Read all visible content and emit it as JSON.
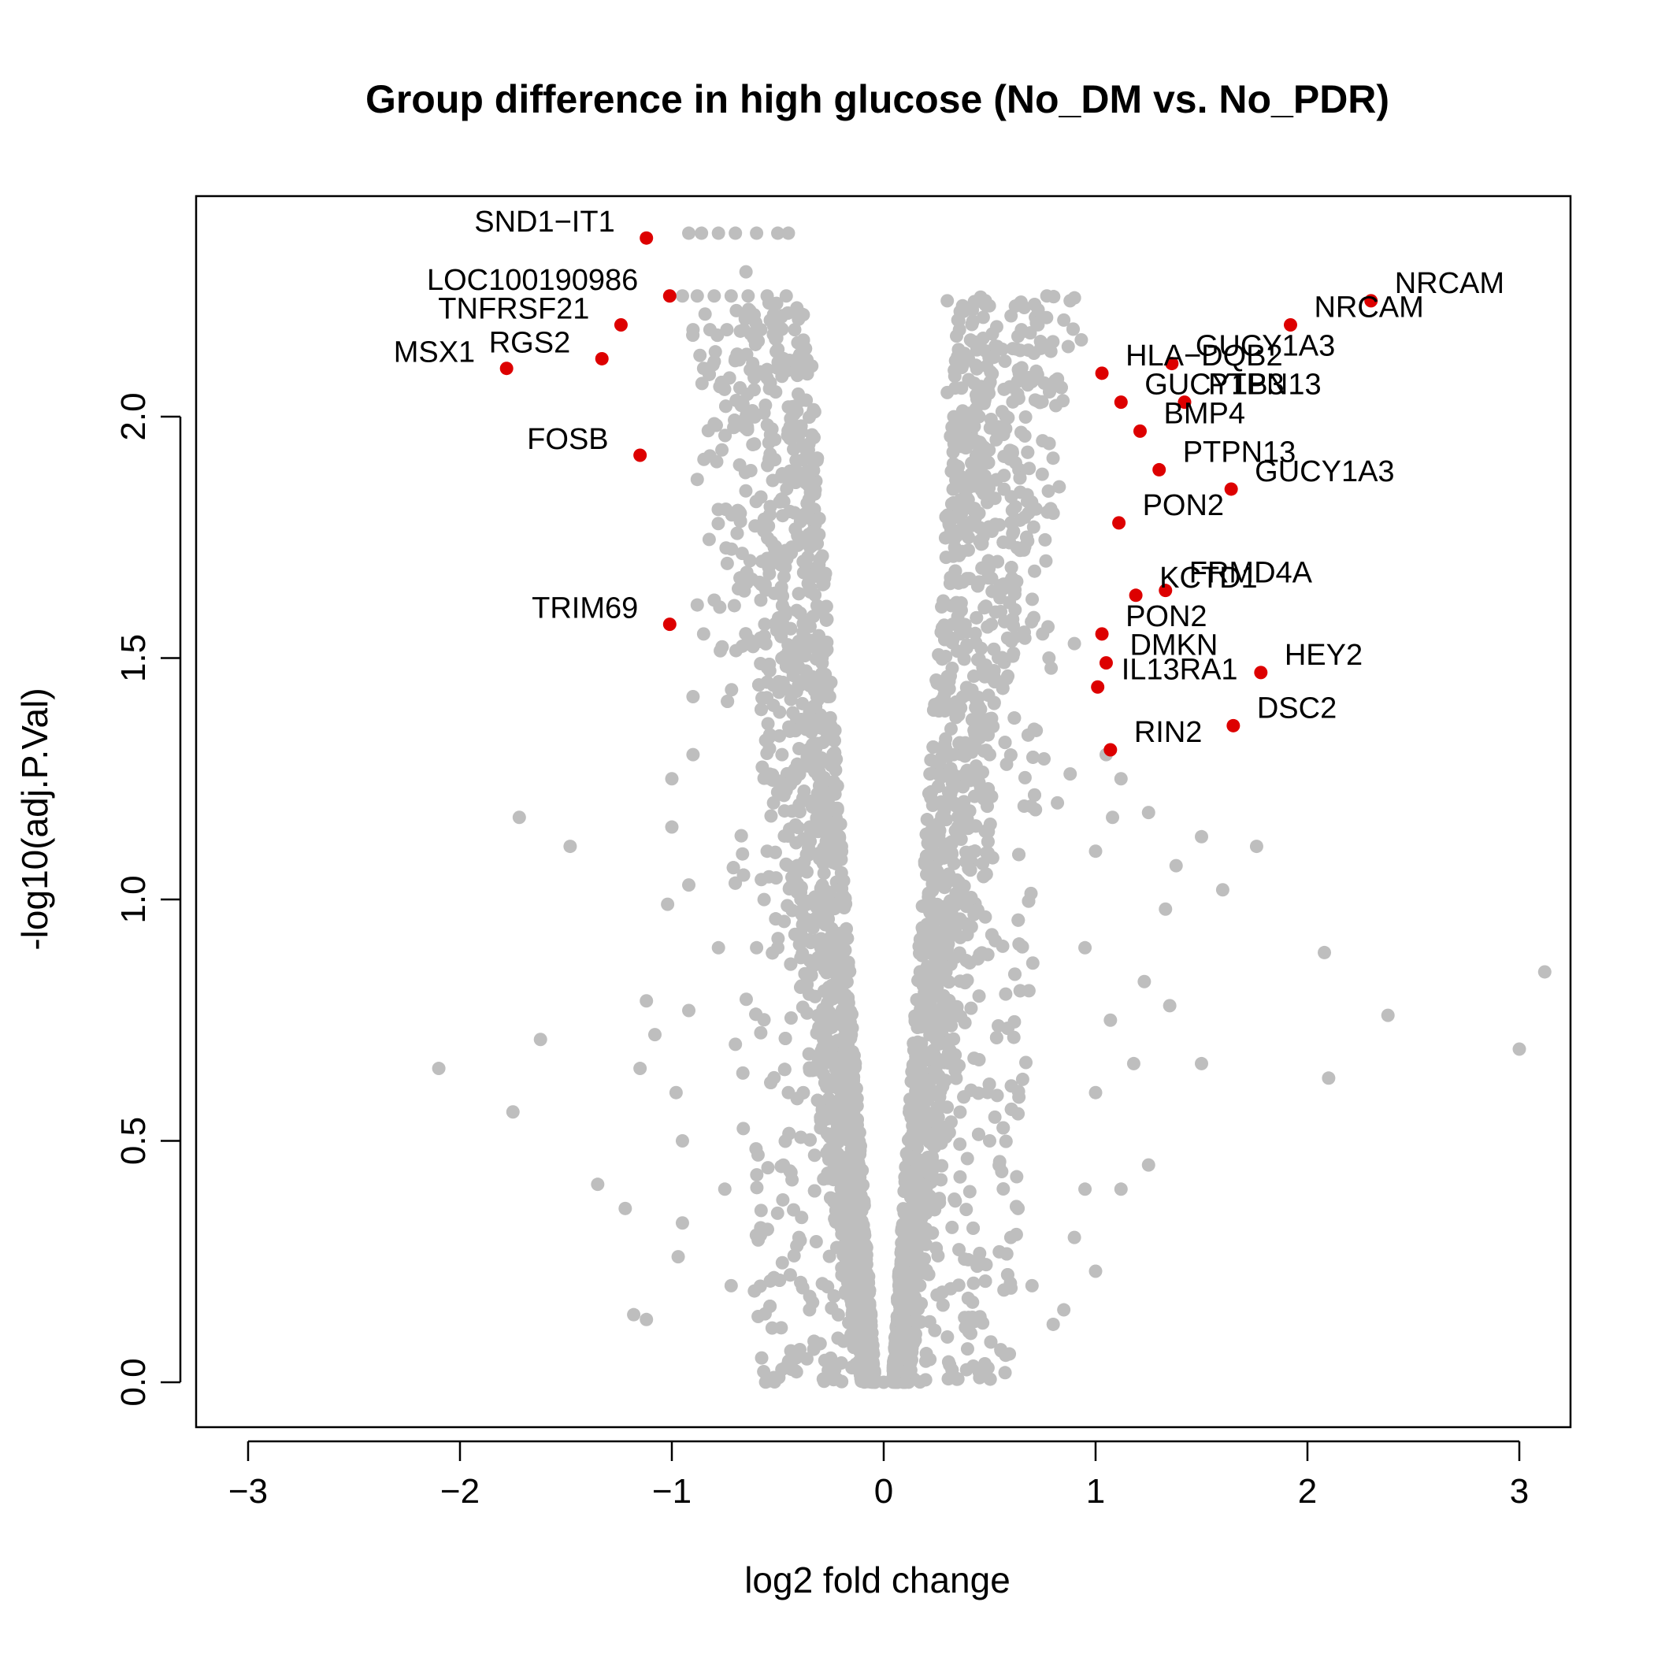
{
  "chart_data": {
    "type": "scatter",
    "title": "Group difference in high glucose (No_DM vs. No_PDR)",
    "xlabel": "log2 fold change",
    "ylabel": "-log10(adj.P.Val)",
    "xlim": [
      -3,
      3
    ],
    "ylim": [
      0,
      2.5
    ],
    "x_ticks": [
      "−3",
      "−2",
      "−1",
      "0",
      "1",
      "2",
      "3"
    ],
    "y_ticks": [
      "0.0",
      "0.5",
      "1.0",
      "1.5",
      "2.0"
    ],
    "colors": {
      "background_points": "#bebebe",
      "highlight_points": "#dd0000"
    },
    "series": [
      {
        "name": "",
        "color": "#bebebe",
        "points": [
          [
            -2.1,
            0.65
          ],
          [
            -1.75,
            0.56
          ],
          [
            -1.72,
            1.17
          ],
          [
            -1.62,
            0.71
          ],
          [
            -1.48,
            1.11
          ],
          [
            -1.35,
            0.41
          ],
          [
            -1.22,
            0.36
          ],
          [
            -1.18,
            0.14
          ],
          [
            -1.12,
            0.13
          ],
          [
            -1.15,
            0.65
          ],
          [
            -1.12,
            0.79
          ],
          [
            -1.08,
            0.72
          ],
          [
            -1.02,
            0.99
          ],
          [
            -1.0,
            1.25
          ],
          [
            -1.0,
            1.15
          ],
          [
            -0.98,
            0.6
          ],
          [
            -0.95,
            0.5
          ],
          [
            -0.95,
            0.33
          ],
          [
            -0.97,
            0.26
          ],
          [
            -0.92,
            0.77
          ],
          [
            -0.92,
            1.03
          ],
          [
            -0.9,
            1.42
          ],
          [
            -0.9,
            1.3
          ],
          [
            -0.88,
            1.61
          ],
          [
            -0.88,
            1.87
          ],
          [
            -0.85,
            1.55
          ],
          [
            -0.8,
            1.62
          ],
          [
            -0.78,
            0.9
          ],
          [
            -0.75,
            0.4
          ],
          [
            -0.72,
            0.2
          ],
          [
            -0.7,
            0.7
          ],
          [
            -0.68,
            1.9
          ],
          [
            -0.65,
            2.3
          ],
          [
            -0.62,
            2.0
          ],
          [
            -0.58,
            1.62
          ],
          [
            -0.55,
            1.45
          ],
          [
            -0.52,
            1.2
          ],
          [
            -0.5,
            0.9
          ],
          [
            -0.45,
            0.6
          ],
          [
            -0.4,
            0.3
          ],
          [
            -0.35,
            0.15
          ],
          [
            -0.3,
            0.08
          ],
          [
            -0.25,
            0.05
          ],
          [
            -0.2,
            0.04
          ],
          [
            -0.15,
            0.03
          ],
          [
            -0.92,
            2.38
          ],
          [
            -0.86,
            2.38
          ],
          [
            -0.78,
            2.38
          ],
          [
            -0.7,
            2.38
          ],
          [
            -0.6,
            2.38
          ],
          [
            -0.5,
            2.38
          ],
          [
            -0.45,
            2.38
          ],
          [
            -0.95,
            2.25
          ],
          [
            -0.88,
            2.25
          ],
          [
            -0.8,
            2.25
          ],
          [
            -0.72,
            2.25
          ],
          [
            -0.64,
            2.25
          ],
          [
            -0.55,
            2.25
          ],
          [
            -0.46,
            2.25
          ],
          [
            -0.9,
            2.18
          ],
          [
            -0.82,
            2.18
          ],
          [
            -0.74,
            2.18
          ],
          [
            -0.66,
            2.18
          ],
          [
            -0.58,
            2.18
          ],
          [
            -0.5,
            2.18
          ],
          [
            -0.42,
            2.18
          ],
          [
            -0.85,
            2.1
          ],
          [
            -0.7,
            2.12
          ],
          [
            -0.55,
            2.08
          ],
          [
            -0.45,
            2.02
          ],
          [
            0.3,
            2.24
          ],
          [
            0.35,
            2.2
          ],
          [
            0.48,
            2.24
          ],
          [
            0.65,
            2.18
          ],
          [
            0.77,
            2.25
          ],
          [
            0.85,
            2.2
          ],
          [
            0.88,
            2.24
          ],
          [
            0.4,
            2.12
          ],
          [
            0.3,
            2.05
          ],
          [
            0.45,
            2.0
          ],
          [
            0.52,
            1.98
          ],
          [
            0.6,
            1.92
          ],
          [
            0.75,
            1.95
          ],
          [
            0.8,
            1.8
          ],
          [
            0.38,
            1.85
          ],
          [
            0.45,
            1.8
          ],
          [
            0.55,
            1.65
          ],
          [
            0.62,
            1.6
          ],
          [
            0.75,
            1.55
          ],
          [
            0.78,
            1.5
          ],
          [
            0.9,
            1.53
          ],
          [
            0.5,
            1.3
          ],
          [
            0.58,
            1.28
          ],
          [
            0.72,
            1.35
          ],
          [
            0.82,
            1.2
          ],
          [
            0.88,
            1.26
          ],
          [
            1.05,
            1.3
          ],
          [
            1.12,
            1.25
          ],
          [
            1.25,
            1.18
          ],
          [
            1.38,
            1.07
          ],
          [
            1.5,
            1.13
          ],
          [
            1.6,
            1.02
          ],
          [
            1.76,
            1.11
          ],
          [
            1.33,
            0.98
          ],
          [
            1.0,
            1.1
          ],
          [
            1.08,
            1.17
          ],
          [
            0.95,
            0.9
          ],
          [
            1.23,
            0.83
          ],
          [
            1.35,
            0.78
          ],
          [
            1.5,
            0.66
          ],
          [
            1.18,
            0.66
          ],
          [
            1.07,
            0.75
          ],
          [
            1.0,
            0.6
          ],
          [
            1.25,
            0.45
          ],
          [
            1.12,
            0.4
          ],
          [
            0.95,
            0.4
          ],
          [
            1.0,
            0.23
          ],
          [
            0.9,
            0.3
          ],
          [
            0.85,
            0.15
          ],
          [
            0.8,
            0.12
          ],
          [
            0.7,
            0.2
          ],
          [
            0.6,
            0.3
          ],
          [
            0.5,
            0.5
          ],
          [
            0.45,
            0.8
          ],
          [
            0.4,
            1.0
          ],
          [
            0.35,
            1.15
          ],
          [
            0.3,
            0.9
          ],
          [
            0.25,
            0.6
          ],
          [
            0.2,
            0.35
          ],
          [
            0.15,
            0.15
          ],
          [
            0.1,
            0.06
          ],
          [
            0.05,
            0.02
          ],
          [
            0.0,
            0.0
          ],
          [
            -0.05,
            0.02
          ],
          [
            -0.1,
            0.04
          ],
          [
            2.08,
            0.89
          ],
          [
            2.1,
            0.63
          ],
          [
            2.38,
            0.76
          ],
          [
            3.0,
            0.69
          ],
          [
            3.12,
            0.85
          ],
          [
            -0.6,
            0.9
          ],
          [
            -0.55,
            1.1
          ],
          [
            -0.48,
            1.3
          ],
          [
            -0.42,
            1.5
          ],
          [
            -0.38,
            1.7
          ],
          [
            -0.33,
            1.4
          ],
          [
            -0.28,
            1.0
          ],
          [
            -0.25,
            0.7
          ],
          [
            -0.2,
            0.45
          ],
          [
            -0.16,
            0.25
          ],
          [
            0.18,
            0.3
          ],
          [
            0.22,
            0.55
          ],
          [
            0.26,
            0.8
          ],
          [
            0.3,
            1.05
          ],
          [
            0.33,
            1.3
          ],
          [
            0.36,
            1.55
          ],
          [
            0.4,
            1.75
          ],
          [
            0.28,
            1.45
          ],
          [
            0.24,
            1.2
          ],
          [
            0.2,
            0.9
          ]
        ]
      },
      {
        "name": "",
        "color": "#dd0000",
        "points": [
          {
            "x": -1.12,
            "y": 2.37,
            "label": "SND1−IT1"
          },
          {
            "x": -1.01,
            "y": 2.25,
            "label": "LOC100190986"
          },
          {
            "x": -1.24,
            "y": 2.19,
            "label": "TNFRSF21"
          },
          {
            "x": -1.33,
            "y": 2.12,
            "label": "RGS2"
          },
          {
            "x": -1.78,
            "y": 2.1,
            "label": "MSX1"
          },
          {
            "x": -1.15,
            "y": 1.92,
            "label": "FOSB"
          },
          {
            "x": -1.01,
            "y": 1.57,
            "label": "TRIM69"
          },
          {
            "x": 2.3,
            "y": 2.24,
            "label": "NRCAM"
          },
          {
            "x": 1.92,
            "y": 2.19,
            "label": "NRCAM"
          },
          {
            "x": 1.36,
            "y": 2.11,
            "label": "GUCY1A3"
          },
          {
            "x": 1.03,
            "y": 2.09,
            "label": "HLA−DQB2"
          },
          {
            "x": 1.42,
            "y": 2.03,
            "label": "PTPN13"
          },
          {
            "x": 1.12,
            "y": 2.03,
            "label": "GUCY1B3"
          },
          {
            "x": 1.21,
            "y": 1.97,
            "label": "BMP4"
          },
          {
            "x": 1.3,
            "y": 1.89,
            "label": "PTPN13"
          },
          {
            "x": 1.64,
            "y": 1.85,
            "label": "GUCY1A3"
          },
          {
            "x": 1.11,
            "y": 1.78,
            "label": "PON2"
          },
          {
            "x": 1.33,
            "y": 1.64,
            "label": "FRMD4A"
          },
          {
            "x": 1.19,
            "y": 1.63,
            "label": "KCTD1"
          },
          {
            "x": 1.03,
            "y": 1.55,
            "label": "PON2"
          },
          {
            "x": 1.05,
            "y": 1.49,
            "label": "DMKN"
          },
          {
            "x": 1.78,
            "y": 1.47,
            "label": "HEY2"
          },
          {
            "x": 1.01,
            "y": 1.44,
            "label": "IL13RA1"
          },
          {
            "x": 1.65,
            "y": 1.36,
            "label": "DSC2"
          },
          {
            "x": 1.07,
            "y": 1.31,
            "label": "RIN2"
          }
        ]
      }
    ]
  }
}
